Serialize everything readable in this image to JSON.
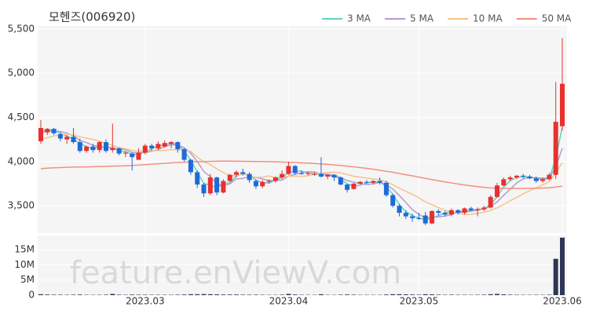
{
  "chart_data": {
    "type": "candlestick",
    "title": "모헨즈(006920)",
    "watermark": "feature.enViewV.com",
    "up_color": "#e8312f",
    "down_color": "#1f6ad8",
    "categories": [
      null,
      null,
      null,
      null,
      null,
      null,
      null,
      null,
      null,
      null,
      null,
      null,
      null,
      null,
      null,
      null,
      "2023.03",
      null,
      null,
      null,
      null,
      null,
      null,
      null,
      null,
      null,
      null,
      null,
      null,
      null,
      null,
      null,
      null,
      null,
      null,
      null,
      null,
      null,
      "2023.04",
      null,
      null,
      null,
      null,
      null,
      null,
      null,
      null,
      null,
      null,
      null,
      null,
      null,
      null,
      null,
      null,
      null,
      null,
      null,
      "2023.05",
      null,
      null,
      null,
      null,
      null,
      null,
      null,
      null,
      null,
      null,
      null,
      null,
      null,
      null,
      null,
      null,
      null,
      null,
      null,
      null,
      null,
      "2023.06"
    ],
    "open": [
      4230,
      4330,
      4370,
      4310,
      4250,
      4280,
      4220,
      4120,
      4170,
      4130,
      4220,
      4130,
      4150,
      4090,
      4090,
      4020,
      4100,
      4180,
      4150,
      4170,
      4200,
      4220,
      4140,
      4020,
      3880,
      3740,
      3640,
      3820,
      3650,
      3780,
      3850,
      3880,
      3860,
      3780,
      3720,
      3770,
      3780,
      3820,
      3860,
      3950,
      3870,
      3860,
      3850,
      3860,
      3830,
      3850,
      3820,
      3740,
      3690,
      3750,
      3770,
      3760,
      3780,
      3760,
      3620,
      3500,
      3420,
      3380,
      3360,
      3390,
      3300,
      3440,
      3420,
      3400,
      3450,
      3420,
      3470,
      3450,
      3460,
      3480,
      3600,
      3730,
      3800,
      3820,
      3840,
      3830,
      3810,
      3780,
      3800,
      3850,
      4400
    ],
    "high": [
      4470,
      4380,
      4380,
      4330,
      4300,
      4380,
      4260,
      4180,
      4200,
      4230,
      4250,
      4430,
      4160,
      4120,
      4100,
      4150,
      4200,
      4200,
      4230,
      4240,
      4230,
      4230,
      4150,
      4030,
      3900,
      3760,
      3860,
      3830,
      3800,
      3860,
      3900,
      3920,
      3880,
      3800,
      3790,
      3800,
      3830,
      3900,
      4000,
      3960,
      3900,
      3880,
      3880,
      4050,
      3860,
      3860,
      3830,
      3750,
      3760,
      3780,
      3790,
      3790,
      3820,
      3780,
      3640,
      3520,
      3450,
      3410,
      3420,
      3430,
      3450,
      3460,
      3440,
      3470,
      3460,
      3480,
      3490,
      3480,
      3500,
      3620,
      3760,
      3820,
      3840,
      3850,
      3860,
      3850,
      3830,
      3820,
      3870,
      4900,
      5400
    ],
    "low": [
      4200,
      4300,
      4300,
      4230,
      4200,
      4200,
      4100,
      4100,
      4100,
      4100,
      4100,
      4100,
      4070,
      4050,
      3900,
      4020,
      4080,
      4120,
      4130,
      4160,
      4150,
      4100,
      4000,
      3850,
      3700,
      3600,
      3620,
      3620,
      3640,
      3770,
      3820,
      3840,
      3760,
      3690,
      3700,
      3750,
      3760,
      3800,
      3850,
      3850,
      3850,
      3840,
      3840,
      3820,
      3800,
      3780,
      3730,
      3650,
      3680,
      3740,
      3750,
      3740,
      3740,
      3600,
      3480,
      3380,
      3350,
      3320,
      3340,
      3280,
      3290,
      3390,
      3380,
      3380,
      3400,
      3400,
      3440,
      3380,
      3440,
      3470,
      3590,
      3720,
      3780,
      3800,
      3810,
      3800,
      3760,
      3760,
      3790,
      3800,
      4350
    ],
    "close": [
      4380,
      4370,
      4320,
      4260,
      4280,
      4220,
      4120,
      4170,
      4130,
      4220,
      4120,
      4150,
      4090,
      4100,
      4050,
      4100,
      4180,
      4150,
      4200,
      4210,
      4220,
      4140,
      4020,
      3880,
      3740,
      3640,
      3820,
      3650,
      3780,
      3850,
      3880,
      3860,
      3790,
      3720,
      3770,
      3780,
      3820,
      3860,
      3950,
      3870,
      3860,
      3870,
      3860,
      3830,
      3850,
      3820,
      3740,
      3680,
      3750,
      3770,
      3760,
      3780,
      3760,
      3620,
      3500,
      3420,
      3380,
      3360,
      3350,
      3300,
      3440,
      3420,
      3400,
      3450,
      3420,
      3470,
      3450,
      3460,
      3480,
      3600,
      3730,
      3800,
      3820,
      3840,
      3830,
      3810,
      3780,
      3800,
      3850,
      4450,
      4880
    ],
    "series": [
      {
        "name": "3 MA",
        "color": "#5fd3c4",
        "values": [
          4350,
          4360,
          4357,
          4317,
          4287,
          4253,
          4207,
          4170,
          4140,
          4173,
          4157,
          4163,
          4120,
          4113,
          4080,
          4083,
          4110,
          4143,
          4177,
          4187,
          4210,
          4190,
          4127,
          4013,
          3880,
          3753,
          3733,
          3703,
          3750,
          3760,
          3837,
          3863,
          3843,
          3790,
          3760,
          3757,
          3790,
          3820,
          3877,
          3893,
          3893,
          3867,
          3863,
          3853,
          3847,
          3833,
          3803,
          3747,
          3723,
          3733,
          3760,
          3770,
          3767,
          3720,
          3627,
          3513,
          3433,
          3387,
          3363,
          3337,
          3363,
          3387,
          3420,
          3423,
          3423,
          3447,
          3447,
          3460,
          3463,
          3513,
          3603,
          3710,
          3783,
          3820,
          3830,
          3827,
          3807,
          3797,
          3810,
          4033,
          4393
        ]
      },
      {
        "name": "5 MA",
        "color": "#b39cd0",
        "values": [
          4330,
          4340,
          4345,
          4340,
          4322,
          4290,
          4240,
          4214,
          4184,
          4172,
          4152,
          4158,
          4140,
          4136,
          4102,
          4098,
          4104,
          4116,
          4136,
          4168,
          4192,
          4184,
          4158,
          4094,
          4000,
          3888,
          3828,
          3750,
          3726,
          3748,
          3804,
          3808,
          3832,
          3820,
          3804,
          3784,
          3788,
          3790,
          3836,
          3856,
          3872,
          3886,
          3882,
          3858,
          3854,
          3846,
          3820,
          3784,
          3768,
          3752,
          3740,
          3748,
          3764,
          3738,
          3688,
          3616,
          3536,
          3456,
          3402,
          3362,
          3370,
          3374,
          3382,
          3402,
          3426,
          3432,
          3438,
          3450,
          3466,
          3492,
          3544,
          3618,
          3686,
          3758,
          3804,
          3820,
          3816,
          3812,
          3814,
          3938,
          4152
        ]
      },
      {
        "name": "10 MA",
        "color": "#f2c48d",
        "values": [
          4250,
          4270,
          4290,
          4300,
          4310,
          4300,
          4280,
          4265,
          4250,
          4231,
          4205,
          4183,
          4160,
          4144,
          4127,
          4115,
          4121,
          4119,
          4126,
          4125,
          4135,
          4134,
          4127,
          4115,
          4050,
          3996,
          3966,
          3917,
          3875,
          3839,
          3839,
          3861,
          3838,
          3821,
          3823,
          3837,
          3819,
          3826,
          3833,
          3835,
          3833,
          3838,
          3857,
          3868,
          3876,
          3880,
          3872,
          3854,
          3834,
          3824,
          3812,
          3804,
          3794,
          3773,
          3738,
          3698,
          3662,
          3630,
          3590,
          3544,
          3512,
          3478,
          3448,
          3430,
          3414,
          3401,
          3404,
          3414,
          3427,
          3447,
          3476,
          3514,
          3556,
          3595,
          3636,
          3670,
          3703,
          3737,
          3774,
          3871,
          3987
        ]
      },
      {
        "name": "50 MA",
        "color": "#f4907f",
        "values": [
          3920,
          3925,
          3930,
          3932,
          3935,
          3937,
          3938,
          3940,
          3942,
          3944,
          3946,
          3948,
          3950,
          3953,
          3956,
          3960,
          3965,
          3970,
          3975,
          3980,
          3985,
          3990,
          3993,
          3995,
          3998,
          4000,
          4002,
          4004,
          4005,
          4005,
          4004,
          4003,
          4002,
          4001,
          4000,
          3999,
          3997,
          3995,
          3992,
          3990,
          3986,
          3982,
          3978,
          3973,
          3968,
          3962,
          3955,
          3948,
          3940,
          3932,
          3923,
          3913,
          3902,
          3890,
          3878,
          3865,
          3851,
          3838,
          3824,
          3810,
          3796,
          3783,
          3770,
          3758,
          3746,
          3735,
          3725,
          3716,
          3708,
          3702,
          3698,
          3696,
          3695,
          3695,
          3696,
          3697,
          3698,
          3700,
          3703,
          3712,
          3722
        ]
      }
    ],
    "ylim": [
      3190,
      5535
    ],
    "yticks": [
      {
        "value": 3500,
        "label": "3,500"
      },
      {
        "value": 4000,
        "label": "4,000"
      },
      {
        "value": 4500,
        "label": "4,500"
      },
      {
        "value": 5000,
        "label": "5,000"
      },
      {
        "value": 5500,
        "label": "5,500"
      }
    ],
    "volume": {
      "color": "#2f3655",
      "values": [
        300000,
        200000,
        150000,
        150000,
        120000,
        150000,
        200000,
        120000,
        100000,
        120000,
        150000,
        400000,
        150000,
        120000,
        200000,
        150000,
        150000,
        120000,
        120000,
        120000,
        120000,
        150000,
        200000,
        300000,
        300000,
        350000,
        300000,
        250000,
        200000,
        200000,
        200000,
        150000,
        150000,
        150000,
        120000,
        100000,
        100000,
        150000,
        400000,
        200000,
        120000,
        100000,
        100000,
        300000,
        100000,
        100000,
        150000,
        200000,
        150000,
        100000,
        100000,
        100000,
        100000,
        200000,
        300000,
        300000,
        250000,
        200000,
        150000,
        300000,
        250000,
        150000,
        120000,
        150000,
        120000,
        120000,
        100000,
        120000,
        150000,
        300000,
        400000,
        250000,
        150000,
        120000,
        100000,
        100000,
        120000,
        100000,
        150000,
        12000000,
        19000000
      ],
      "ylim": [
        0,
        19700000
      ],
      "yticks": [
        {
          "value": 0,
          "label": "0"
        },
        {
          "value": 5000000,
          "label": "5M"
        },
        {
          "value": 10000000,
          "label": "10M"
        },
        {
          "value": 15000000,
          "label": "15M"
        }
      ]
    }
  }
}
